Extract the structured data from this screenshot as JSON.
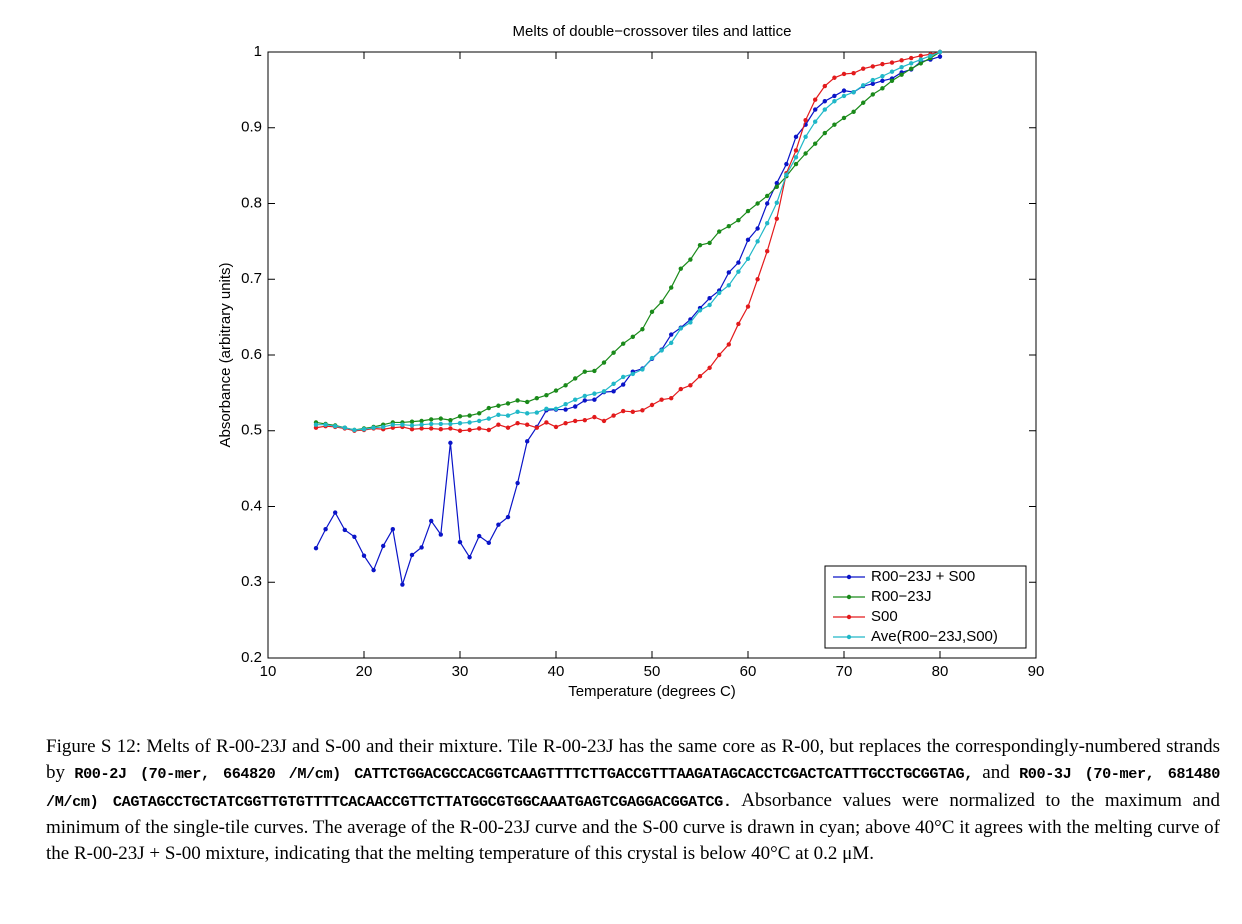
{
  "chart_data": {
    "type": "line",
    "title": "Melts of double−crossover tiles and lattice",
    "xlabel": "Temperature (degrees C)",
    "ylabel": "Absorbance (arbitrary units)",
    "xlim": [
      10,
      90
    ],
    "xticks": [
      10,
      20,
      30,
      40,
      50,
      60,
      70,
      80,
      90
    ],
    "ylim": [
      0.2,
      1
    ],
    "yticks": [
      0.2,
      0.3,
      0.4,
      0.5,
      0.6,
      0.7,
      0.8,
      0.9,
      1
    ],
    "legend": "lower right",
    "x": [
      15,
      16,
      17,
      18,
      19,
      20,
      21,
      22,
      23,
      24,
      25,
      26,
      27,
      28,
      29,
      30,
      31,
      32,
      33,
      34,
      35,
      36,
      37,
      38,
      39,
      40,
      41,
      42,
      43,
      44,
      45,
      46,
      47,
      48,
      49,
      50,
      51,
      52,
      53,
      54,
      55,
      56,
      57,
      58,
      59,
      60,
      61,
      62,
      63,
      64,
      65,
      66,
      67,
      68,
      69,
      70,
      71,
      72,
      73,
      74,
      75,
      76,
      77,
      78,
      79,
      80
    ],
    "series": [
      {
        "name": "R00−23J + S00",
        "color": "#0a14c8",
        "values": [
          0.345,
          0.37,
          0.392,
          0.369,
          0.36,
          0.335,
          0.316,
          0.348,
          0.37,
          0.297,
          0.336,
          0.346,
          0.381,
          0.363,
          0.484,
          0.353,
          0.333,
          0.361,
          0.352,
          0.376,
          0.386,
          0.431,
          0.486,
          0.505,
          0.527,
          0.528,
          0.528,
          0.532,
          0.54,
          0.541,
          0.551,
          0.552,
          0.561,
          0.578,
          0.582,
          0.595,
          0.607,
          0.627,
          0.636,
          0.647,
          0.662,
          0.675,
          0.685,
          0.709,
          0.722,
          0.752,
          0.767,
          0.8,
          0.827,
          0.852,
          0.888,
          0.904,
          0.924,
          0.935,
          0.942,
          0.949,
          0.947,
          0.955,
          0.958,
          0.962,
          0.965,
          0.973,
          0.977,
          0.987,
          0.99,
          0.994
        ]
      },
      {
        "name": "R00−23J",
        "color": "#1a8a1a",
        "values": [
          0.511,
          0.509,
          0.507,
          0.504,
          0.501,
          0.503,
          0.505,
          0.508,
          0.511,
          0.511,
          0.512,
          0.513,
          0.515,
          0.516,
          0.514,
          0.519,
          0.52,
          0.523,
          0.53,
          0.533,
          0.536,
          0.54,
          0.538,
          0.543,
          0.547,
          0.553,
          0.56,
          0.569,
          0.578,
          0.579,
          0.59,
          0.603,
          0.615,
          0.624,
          0.634,
          0.657,
          0.67,
          0.689,
          0.714,
          0.726,
          0.745,
          0.748,
          0.763,
          0.77,
          0.778,
          0.79,
          0.8,
          0.81,
          0.822,
          0.836,
          0.852,
          0.866,
          0.879,
          0.893,
          0.904,
          0.913,
          0.921,
          0.933,
          0.944,
          0.952,
          0.962,
          0.97,
          0.978,
          0.985,
          0.992,
          1.0
        ]
      },
      {
        "name": "S00",
        "color": "#e31a1c",
        "values": [
          0.504,
          0.506,
          0.505,
          0.503,
          0.5,
          0.501,
          0.503,
          0.502,
          0.504,
          0.505,
          0.502,
          0.503,
          0.503,
          0.502,
          0.503,
          0.5,
          0.501,
          0.503,
          0.501,
          0.508,
          0.504,
          0.51,
          0.508,
          0.504,
          0.511,
          0.505,
          0.51,
          0.513,
          0.514,
          0.518,
          0.513,
          0.52,
          0.526,
          0.525,
          0.527,
          0.534,
          0.541,
          0.543,
          0.555,
          0.56,
          0.572,
          0.583,
          0.6,
          0.614,
          0.641,
          0.664,
          0.7,
          0.737,
          0.78,
          0.84,
          0.87,
          0.91,
          0.937,
          0.955,
          0.966,
          0.971,
          0.972,
          0.978,
          0.981,
          0.984,
          0.986,
          0.989,
          0.992,
          0.995,
          0.997,
          1.0
        ]
      },
      {
        "name": "Ave(R00−23J,S00)",
        "color": "#20b8c8",
        "values": [
          0.508,
          0.508,
          0.506,
          0.504,
          0.501,
          0.502,
          0.504,
          0.505,
          0.508,
          0.508,
          0.507,
          0.508,
          0.509,
          0.509,
          0.509,
          0.51,
          0.511,
          0.513,
          0.516,
          0.521,
          0.52,
          0.525,
          0.523,
          0.524,
          0.529,
          0.529,
          0.535,
          0.541,
          0.546,
          0.549,
          0.552,
          0.562,
          0.571,
          0.575,
          0.581,
          0.596,
          0.606,
          0.616,
          0.635,
          0.643,
          0.659,
          0.666,
          0.682,
          0.692,
          0.71,
          0.727,
          0.75,
          0.774,
          0.801,
          0.838,
          0.861,
          0.888,
          0.908,
          0.924,
          0.935,
          0.942,
          0.947,
          0.956,
          0.963,
          0.968,
          0.974,
          0.98,
          0.985,
          0.99,
          0.995,
          1.0
        ]
      }
    ]
  },
  "caption": {
    "segments": [
      {
        "text": "Figure S 12: Melts of R-00-23J and S-00 and their mixture. Tile R-00-23J has the same core as R-00, but replaces the correspondingly-numbered strands by ",
        "font": "serif"
      },
      {
        "text": "R00-2J (70-mer, 664820 /M/cm) CATTCTGGACGCCACGGTCAAGTTTTCTTGACCGTTTAAGATAGCACCTCGACTCATTTGCCTGCGGTAG,",
        "font": "mono"
      },
      {
        "text": " and ",
        "font": "serif"
      },
      {
        "text": "R00-3J (70-mer, 681480 /M/cm) CAGTAGCCTGCTATCGGTTGTGTTTTCACAACCGTTCTTATGGCGTGGCAAATGAGTCGAGGACGGATCG.",
        "font": "mono"
      },
      {
        "text": " Absorbance values were normalized to the maximum and minimum of the single-tile curves. The average of the R-00-23J curve and the S-00 curve is drawn in cyan; above 40°C it agrees with the melting curve of the R-00-23J + S-00 mixture, indicating that the melting temperature of this crystal is below 40°C at 0.2 μM.",
        "font": "serif"
      }
    ]
  }
}
